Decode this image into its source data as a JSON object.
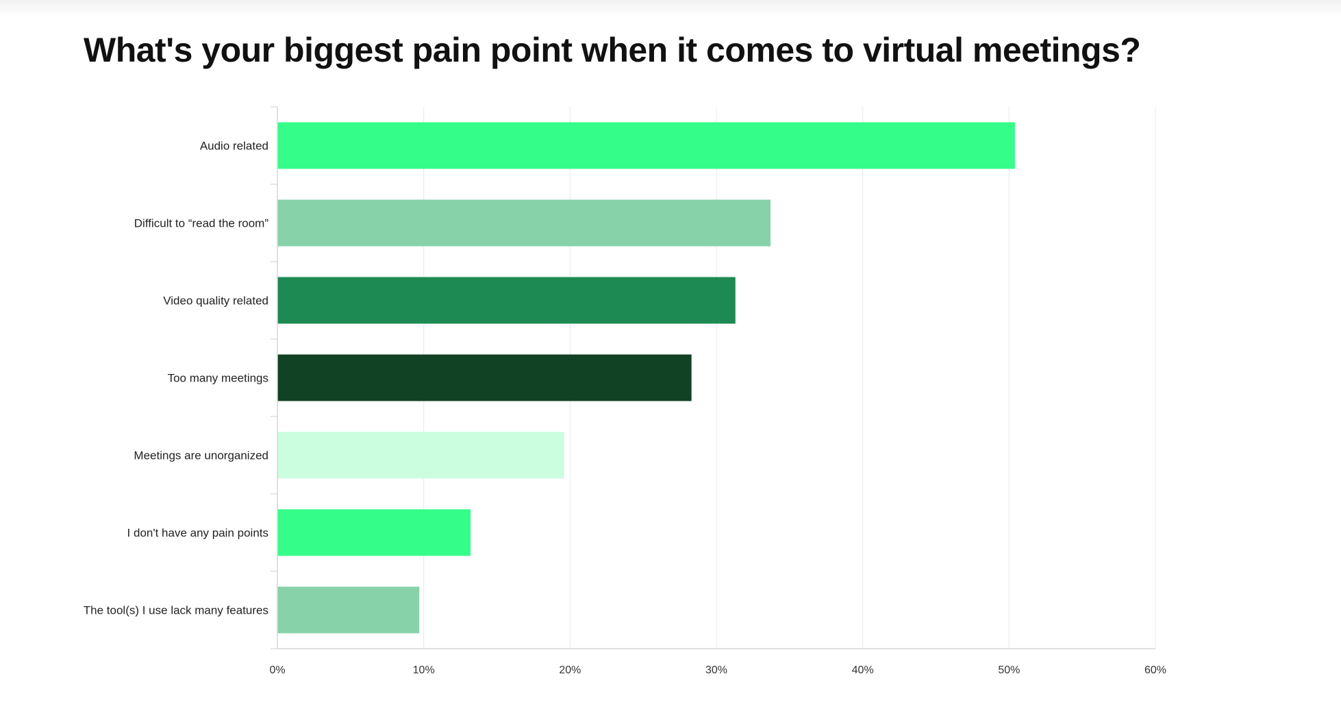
{
  "chart_data": {
    "type": "bar",
    "orientation": "horizontal",
    "title": "What's your biggest pain point when it comes to virtual meetings?",
    "xlabel": "",
    "ylabel": "",
    "xlim": [
      0,
      60
    ],
    "x_ticks": [
      0,
      10,
      20,
      30,
      40,
      50,
      60
    ],
    "x_tick_labels": [
      "0%",
      "10%",
      "20%",
      "30%",
      "40%",
      "50%",
      "60%"
    ],
    "grid": true,
    "categories": [
      "Audio related",
      "Difficult to “read the room”",
      "Video quality related",
      "Too many meetings",
      "Meetings are unorganized",
      "I don't have any pain points",
      "The tool(s) I use lack many features"
    ],
    "values": [
      50.4,
      33.7,
      31.3,
      28.3,
      19.6,
      13.2,
      9.7
    ],
    "colors": [
      "#34fd89",
      "#87d2a9",
      "#1c8a52",
      "#124224",
      "#cbfddf",
      "#34fd89",
      "#87d2a9"
    ]
  }
}
